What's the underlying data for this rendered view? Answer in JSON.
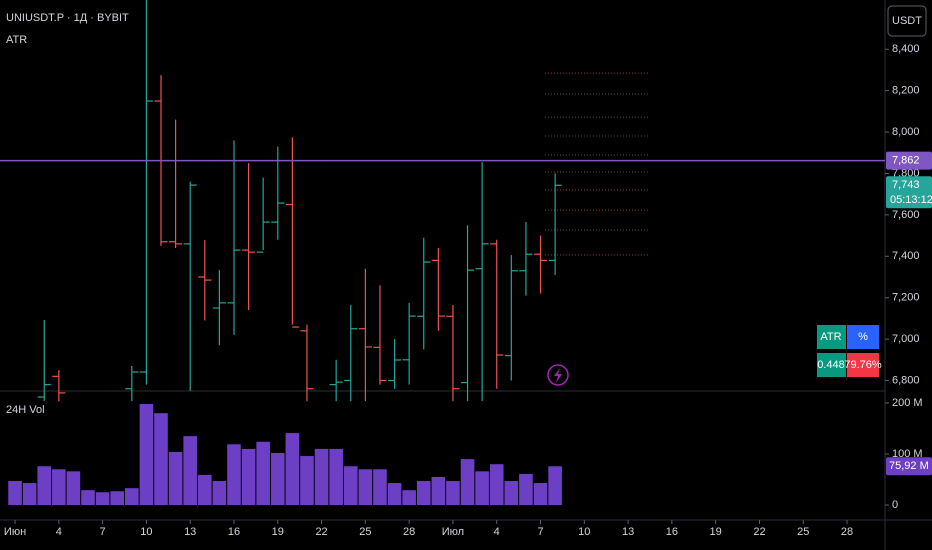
{
  "header": {
    "symbol": "UNIUSDT.P · 1Д · BYBIT",
    "indicator": "ATR",
    "currency": "USDT"
  },
  "table": {
    "headers": [
      "ATR",
      "%"
    ],
    "rows": [
      [
        "0.448",
        "79.76%"
      ]
    ]
  },
  "chart_data": [
    {
      "type": "ohlc",
      "up_color": "#26a69a",
      "down_color": "#ef5350",
      "x": [
        2,
        3,
        8,
        9,
        10,
        11,
        12,
        13,
        14,
        15,
        16,
        17,
        18,
        19,
        20,
        22,
        23,
        24,
        25,
        26,
        27,
        28,
        29,
        30,
        31,
        32,
        33,
        34,
        35,
        36,
        37
      ],
      "open": [
        6720,
        6820,
        6760,
        6841,
        8150,
        7470,
        7460,
        7300,
        7150,
        7175,
        7430,
        7420,
        7565,
        7650,
        7040,
        6780,
        6800,
        7050,
        6960,
        6800,
        6900,
        7110,
        7380,
        7110,
        6790,
        7340,
        7460,
        6920,
        7330,
        7410,
        7380
      ],
      "high": [
        7092,
        6850,
        6870,
        8640,
        8275,
        8060,
        7760,
        7478,
        7333,
        7960,
        7850,
        7780,
        7930,
        7975,
        7070,
        6900,
        7165,
        7340,
        7260,
        7000,
        7175,
        7490,
        7440,
        7165,
        7550,
        7855,
        7480,
        7406,
        7565,
        7500,
        7800
      ],
      "low": [
        6700,
        6700,
        6700,
        6780,
        7450,
        7440,
        6750,
        7090,
        6970,
        7020,
        7140,
        7430,
        7480,
        7070,
        6700,
        6700,
        6700,
        6700,
        6780,
        6760,
        6780,
        6950,
        7040,
        6700,
        6700,
        6700,
        6760,
        6800,
        7210,
        7220,
        7310
      ],
      "close": [
        6780,
        6740,
        6841,
        8150,
        7470,
        7460,
        7744,
        7285,
        7175,
        7430,
        7420,
        7565,
        7657,
        7058,
        6760,
        6792,
        7050,
        6962,
        6800,
        6899,
        7111,
        7372,
        7111,
        6760,
        7333,
        7460,
        6923,
        7330,
        7410,
        7380,
        7743
      ],
      "xlim": [
        -1.03,
        59.6
      ],
      "ylim": [
        6754,
        8638
      ],
      "yticks": [
        {
          "value": 6800,
          "label": "6,800"
        },
        {
          "value": 7000,
          "label": "7,000"
        },
        {
          "value": 7200,
          "label": "7,200"
        },
        {
          "value": 7400,
          "label": "7,400"
        },
        {
          "value": 7600,
          "label": "7,600"
        },
        {
          "value": 7800,
          "label": "7,800"
        },
        {
          "value": 8000,
          "label": "8,000"
        },
        {
          "value": 8200,
          "label": "8,200"
        },
        {
          "value": 8400,
          "label": "8,400"
        }
      ],
      "xticks": [
        {
          "value": 0,
          "label": "Июн"
        },
        {
          "value": 3,
          "label": "4"
        },
        {
          "value": 6,
          "label": "7"
        },
        {
          "value": 9,
          "label": "10"
        },
        {
          "value": 12,
          "label": "13"
        },
        {
          "value": 15,
          "label": "16"
        },
        {
          "value": 18,
          "label": "19"
        },
        {
          "value": 21,
          "label": "22"
        },
        {
          "value": 24,
          "label": "25"
        },
        {
          "value": 27,
          "label": "28"
        },
        {
          "value": 30,
          "label": "Июл"
        },
        {
          "value": 33,
          "label": "4"
        },
        {
          "value": 36,
          "label": "7"
        },
        {
          "value": 39,
          "label": "10"
        },
        {
          "value": 42,
          "label": "13"
        },
        {
          "value": 45,
          "label": "16"
        },
        {
          "value": 48,
          "label": "19"
        },
        {
          "value": 51,
          "label": "22"
        },
        {
          "value": 54,
          "label": "25"
        },
        {
          "value": 57,
          "label": "28"
        }
      ],
      "line_label": {
        "value": 7862,
        "label": "7,862",
        "color": "#7e57c2"
      },
      "price_label": {
        "value": 7743,
        "label": "7,743",
        "timer": "05:13:12"
      },
      "levels": [
        8285,
        8184,
        8072,
        7981,
        7889,
        7807,
        7720,
        7623,
        7527,
        7406
      ],
      "level_colors": [
        "#a33a3a",
        "#555555",
        "#555555",
        "#555555",
        "#555555",
        "#555555",
        "#a33a3a",
        "#a33a3a",
        "#555555",
        "#a33a3a"
      ]
    },
    {
      "type": "bar",
      "title": "24H Vol",
      "color": "#6c3fc5",
      "x": [
        0,
        1,
        2,
        3,
        4,
        5,
        6,
        7,
        8,
        9,
        10,
        11,
        12,
        13,
        14,
        15,
        16,
        17,
        18,
        19,
        20,
        21,
        22,
        23,
        24,
        25,
        26,
        27,
        28,
        29,
        30,
        31,
        32,
        33,
        34,
        35,
        36,
        37
      ],
      "values": [
        47,
        43,
        76,
        70,
        66,
        29,
        25,
        27,
        33,
        198,
        180,
        104,
        135,
        59,
        47,
        119,
        110,
        124,
        102,
        141,
        96,
        110,
        110,
        76,
        70,
        70,
        43,
        29,
        47,
        55,
        47,
        90,
        66,
        80,
        47,
        61,
        43,
        75.92
      ],
      "last_label": "75,92 M",
      "ylim": [
        0,
        219.6
      ],
      "yticks": [
        0,
        {
          "value": 100,
          "label": "100 M"
        },
        {
          "value": 200,
          "label": "200 M"
        }
      ]
    }
  ]
}
